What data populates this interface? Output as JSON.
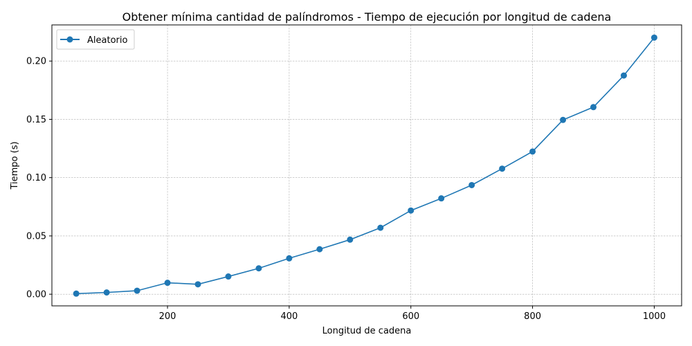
{
  "chart_data": {
    "type": "line",
    "title": "Obtener mínima cantidad de palíndromos - Tiempo de ejecución por longitud de cadena",
    "xlabel": "Longitud de cadena",
    "ylabel": "Tiempo (s)",
    "xlim": [
      10,
      1045
    ],
    "ylim": [
      -0.01,
      0.231
    ],
    "xticks": [
      200,
      400,
      600,
      800,
      1000
    ],
    "yticks": [
      0.0,
      0.05,
      0.1,
      0.15,
      0.2
    ],
    "xtick_labels": [
      "200",
      "400",
      "600",
      "800",
      "1000"
    ],
    "ytick_labels": [
      "0.00",
      "0.05",
      "0.10",
      "0.15",
      "0.20"
    ],
    "grid": true,
    "legend_position": "top-left",
    "series": [
      {
        "name": "Aleatorio",
        "color": "#1f77b4",
        "marker": "circle",
        "x": [
          50,
          100,
          150,
          200,
          250,
          300,
          350,
          400,
          450,
          500,
          550,
          600,
          650,
          700,
          750,
          800,
          850,
          900,
          950,
          1000
        ],
        "y": [
          0.0005,
          0.0015,
          0.003,
          0.0098,
          0.0085,
          0.0152,
          0.0222,
          0.0308,
          0.0386,
          0.0468,
          0.057,
          0.0718,
          0.0822,
          0.0936,
          0.1077,
          0.1224,
          0.1495,
          0.1605,
          0.1876,
          0.2201
        ]
      }
    ]
  }
}
